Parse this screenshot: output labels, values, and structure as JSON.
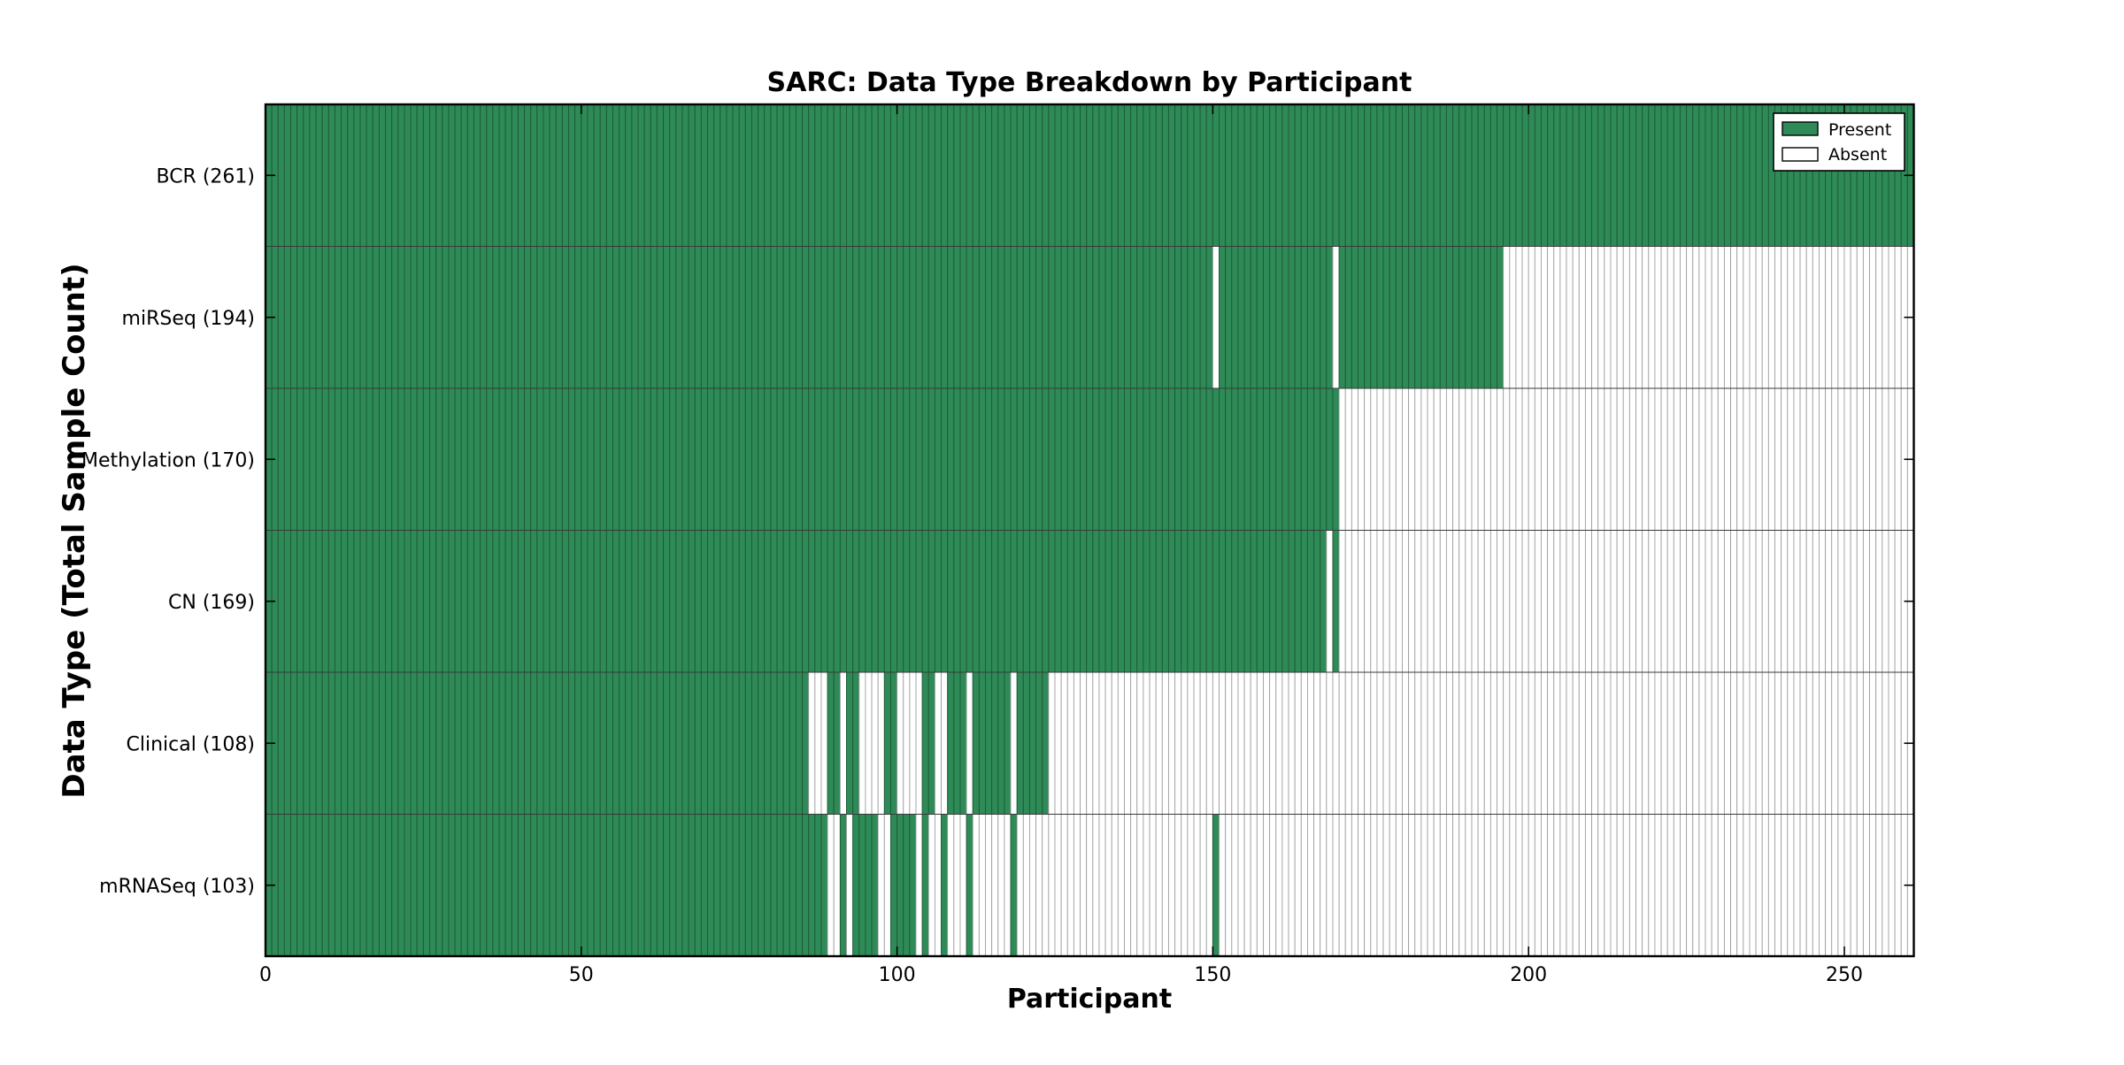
{
  "chart_data": {
    "type": "heatmap",
    "title": "SARC: Data Type Breakdown by Participant",
    "xlabel": "Participant",
    "ylabel": "Data Type (Total Sample Count)",
    "x_ticks": [
      0,
      50,
      100,
      150,
      200,
      250
    ],
    "xlim": [
      0,
      261
    ],
    "x_max": 261,
    "grid": false,
    "legend_position": "upper right",
    "legend": [
      {
        "label": "Present",
        "color": "#2e8b57"
      },
      {
        "label": "Absent",
        "color": "#ffffff"
      }
    ],
    "colors": {
      "present_fill": "#2e8b57",
      "present_edge": "#1d5c38",
      "absent_fill": "#ffffff",
      "absent_edge": "#a0a0a0",
      "divider": "#3a3a3a",
      "axis_border": "#000000"
    },
    "rows": [
      {
        "label": "BCR (261)",
        "data_type": "BCR",
        "total": 261,
        "present_ranges": [
          [
            0,
            260
          ]
        ]
      },
      {
        "label": "miRSeq (194)",
        "data_type": "miRSeq",
        "total": 194,
        "present_ranges": [
          [
            0,
            149
          ],
          [
            151,
            168
          ],
          [
            170,
            195
          ]
        ]
      },
      {
        "label": "Methylation (170)",
        "data_type": "Methylation",
        "total": 170,
        "present_ranges": [
          [
            0,
            169
          ]
        ]
      },
      {
        "label": "CN (169)",
        "data_type": "CN",
        "total": 169,
        "present_ranges": [
          [
            0,
            167
          ],
          [
            169,
            169
          ]
        ]
      },
      {
        "label": "Clinical (108)",
        "data_type": "Clinical",
        "total": 108,
        "present_ranges": [
          [
            0,
            85
          ],
          [
            89,
            90
          ],
          [
            92,
            93
          ],
          [
            98,
            99
          ],
          [
            104,
            105
          ],
          [
            108,
            110
          ],
          [
            112,
            117
          ],
          [
            119,
            123
          ]
        ]
      },
      {
        "label": "mRNASeq (103)",
        "data_type": "mRNASeq",
        "total": 103,
        "present_ranges": [
          [
            0,
            88
          ],
          [
            91,
            91
          ],
          [
            93,
            96
          ],
          [
            99,
            102
          ],
          [
            104,
            104
          ],
          [
            107,
            107
          ],
          [
            111,
            111
          ],
          [
            118,
            118
          ],
          [
            150,
            150
          ]
        ]
      }
    ]
  }
}
